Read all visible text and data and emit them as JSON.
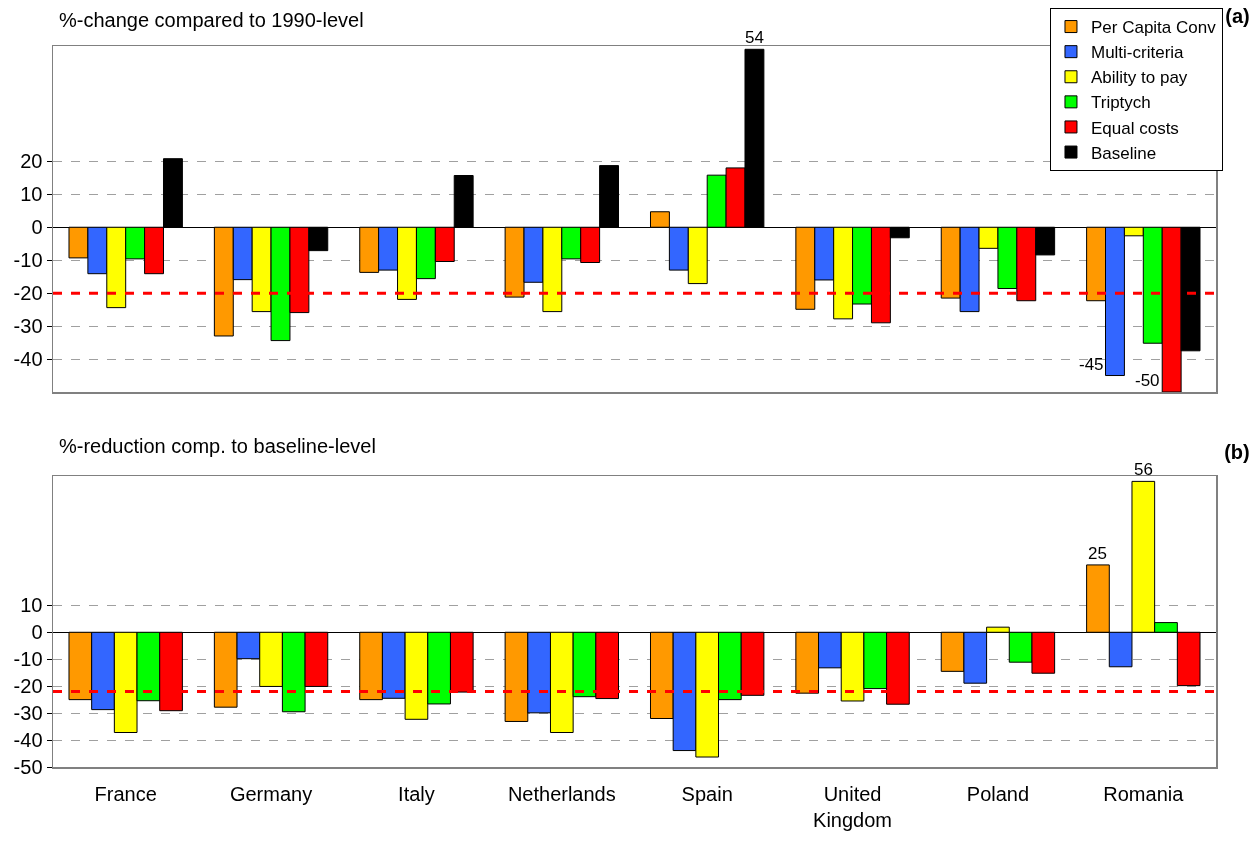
{
  "chart_data": [
    {
      "type": "bar",
      "title": "(a)",
      "ylabel": "%-change compared to 1990-level",
      "categories": [
        "France",
        "Germany",
        "Italy",
        "Netherlands",
        "Spain",
        "United Kingdom",
        "Poland",
        "Romania"
      ],
      "series": [
        {
          "name": "Per Capita Conv",
          "color": "#ff9900",
          "values": [
            -9.3,
            -33.0,
            -13.7,
            -21.2,
            4.7,
            -24.9,
            -21.5,
            -22.3
          ]
        },
        {
          "name": "Multi-criteria",
          "color": "#3366ff",
          "values": [
            -14.1,
            -15.9,
            -13.0,
            -16.7,
            -13.0,
            -16.0,
            -25.6,
            -45
          ],
          "value_labels": [
            null,
            null,
            null,
            null,
            null,
            null,
            null,
            "-45"
          ]
        },
        {
          "name": "Ability to pay",
          "color": "#ffff00",
          "values": [
            -24.4,
            -25.6,
            -21.9,
            -25.6,
            -17.1,
            -27.8,
            -6.4,
            -2.6
          ]
        },
        {
          "name": "Triptych",
          "color": "#00ff00",
          "values": [
            -9.6,
            -34.4,
            -15.6,
            -9.6,
            15.8,
            -23.3,
            -18.6,
            -35.2
          ]
        },
        {
          "name": "Equal costs",
          "color": "#ff0000",
          "values": [
            -14.1,
            -25.9,
            -10.4,
            -10.7,
            18.0,
            -29.0,
            -22.3,
            -50
          ],
          "value_labels": [
            null,
            null,
            null,
            null,
            null,
            null,
            null,
            "-50"
          ]
        },
        {
          "name": "Baseline",
          "color": "#000000",
          "values": [
            20.8,
            -7.1,
            15.7,
            18.7,
            54,
            -3.2,
            -8.4,
            -37.5
          ],
          "value_labels": [
            null,
            null,
            null,
            null,
            "54",
            null,
            null,
            null
          ]
        }
      ],
      "ylim": [
        -50,
        55
      ],
      "yticks": [
        -40,
        -30,
        -20,
        -10,
        0,
        10,
        20
      ],
      "grid": "y",
      "legend": "top right",
      "tick_labels": "y",
      "ref_lines": [
        {
          "axis": "y",
          "value": -20,
          "color": "#ff0000",
          "line_style": "dashed"
        }
      ]
    },
    {
      "type": "bar",
      "title": "(b)",
      "ylabel": "%-reduction comp. to baseline-level",
      "categories": [
        "France",
        "Germany",
        "Italy",
        "Netherlands",
        "Spain",
        "United Kingdom",
        "Poland",
        "Romania"
      ],
      "series": [
        {
          "color": "#ff9900",
          "values": [
            -25.0,
            -27.8,
            -25.0,
            -33.1,
            -32.0,
            -22.6,
            -14.5,
            25
          ],
          "value_labels": [
            null,
            null,
            null,
            null,
            null,
            null,
            null,
            "25"
          ]
        },
        {
          "color": "#3366ff",
          "values": [
            -28.7,
            -9.8,
            -24.5,
            -29.9,
            -43.9,
            -13.2,
            -18.9,
            -12.8
          ]
        },
        {
          "color": "#ffff00",
          "values": [
            -37.2,
            -20.1,
            -32.3,
            -37.2,
            -46.3,
            -25.5,
            1.9,
            56
          ],
          "value_labels": [
            null,
            null,
            null,
            null,
            null,
            null,
            null,
            "56"
          ]
        },
        {
          "color": "#00ff00",
          "values": [
            -25.4,
            -29.5,
            -26.6,
            -23.9,
            -25.0,
            -20.9,
            -11.1,
            3.6
          ]
        },
        {
          "color": "#ff0000",
          "values": [
            -29.1,
            -20.1,
            -22.2,
            -24.6,
            -23.4,
            -26.7,
            -15.2,
            -19.8
          ]
        }
      ],
      "ylim": [
        -50,
        58
      ],
      "yticks": [
        -50,
        -40,
        -30,
        -20,
        -10,
        0,
        10
      ],
      "grid": "y",
      "ref_lines": [
        {
          "axis": "y",
          "value": -22,
          "color": "#ff0000",
          "line_style": "dashed"
        }
      ]
    }
  ]
}
